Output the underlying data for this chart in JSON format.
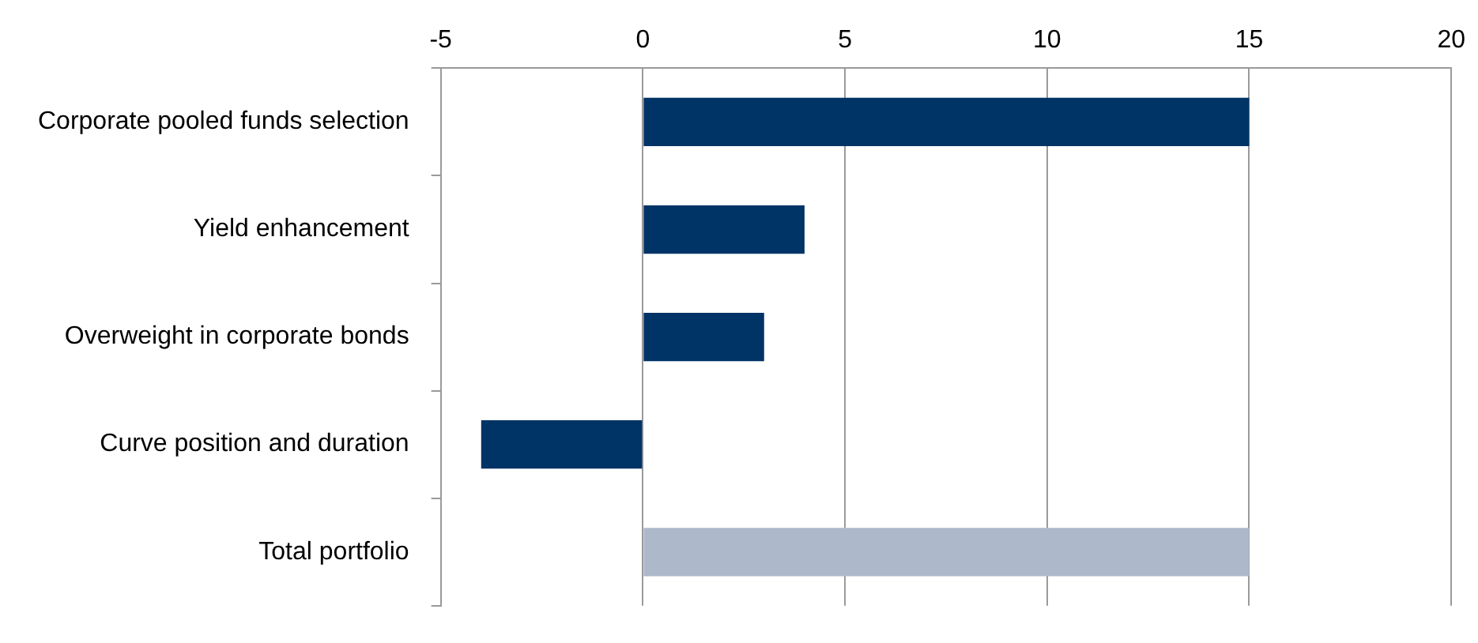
{
  "chart_data": {
    "type": "bar",
    "orientation": "horizontal",
    "categories": [
      "Corporate pooled funds selection",
      "Yield enhancement",
      "Overweight in corporate bonds",
      "Curve position and duration",
      "Total portfolio"
    ],
    "values": [
      15,
      4,
      3,
      -4,
      15
    ],
    "colors": [
      "#003366",
      "#003366",
      "#003366",
      "#003366",
      "#adb9ca"
    ],
    "xlim": [
      -5,
      20
    ],
    "xticks": [
      -5,
      0,
      5,
      10,
      15,
      20
    ],
    "grid": "x",
    "legend": false
  }
}
